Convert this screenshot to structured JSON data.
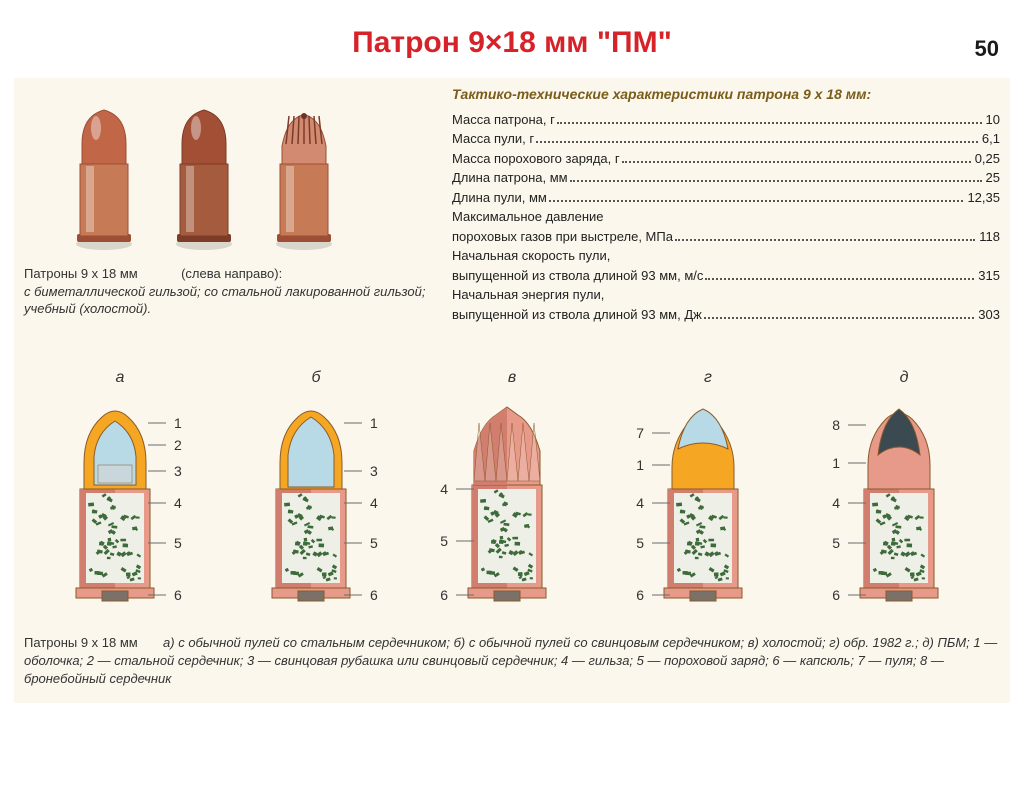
{
  "page_number": "50",
  "title": "Патрон 9×18 мм \"ПМ\"",
  "background_color": "#fbf7ec",
  "title_color": "#d6232a",
  "photo": {
    "label": "Патроны 9 х 18 мм",
    "paren": "(слева направо):",
    "desc_italic": "с биметаллической гильзой; со стальной лакированной гильзой; учебный (холостой).",
    "bullets": [
      {
        "body": "#c77a56",
        "rim": "#9c4f34",
        "tip_style": "round",
        "tip_color": "#c26648"
      },
      {
        "body": "#a45b3e",
        "rim": "#7c3c28",
        "tip_style": "round",
        "tip_color": "#a24f35"
      },
      {
        "body": "#c77a56",
        "rim": "#9c4f34",
        "tip_style": "crimp",
        "tip_color": "#d28a70"
      }
    ]
  },
  "specs": {
    "title": "Тактико-технические характеристики патрона 9 х 18 мм:",
    "rows": [
      {
        "label": "Масса патрона, г",
        "value": "10"
      },
      {
        "label": "Масса пули, г",
        "value": "6,1"
      },
      {
        "label": "Масса порохового заряда, г",
        "value": "0,25"
      },
      {
        "label": "Длина патрона, мм",
        "value": "25"
      },
      {
        "label": "Длина пули, мм",
        "value": "12,35"
      },
      {
        "label": "Максимальное давление",
        "cont": "пороховых газов при выстреле, МПа",
        "value": "118"
      },
      {
        "label": "Начальная скорость пули,",
        "cont": "выпущенной из ствола длиной 93 мм, м/с",
        "value": "315"
      },
      {
        "label": "Начальная энергия пули,",
        "cont": "выпущенной из ствола длиной 93 мм, Дж",
        "value": "303"
      }
    ]
  },
  "diagrams": {
    "labels": [
      "а",
      "б",
      "в",
      "г",
      "д"
    ],
    "colors": {
      "jacket": "#f5a623",
      "steel_core": "#b7dae6",
      "lead": "#c9d6db",
      "case_body": "#e89a8a",
      "case_shadow": "#d17e6f",
      "powder_bg": "#eef0e8",
      "powder_grain": "#3e6b3a",
      "primer": "#7a7268",
      "ap_core": "#3a4a50",
      "outline": "#8a5a2a",
      "callout": "#6b6b6b"
    },
    "items": [
      {
        "id": "a",
        "type": "standard_steel",
        "callouts": [
          1,
          2,
          3,
          4,
          5,
          6
        ]
      },
      {
        "id": "b",
        "type": "standard_lead",
        "callouts": [
          1,
          3,
          4,
          5,
          6
        ]
      },
      {
        "id": "c",
        "type": "blank",
        "callouts": [
          4,
          5,
          6
        ]
      },
      {
        "id": "d",
        "type": "m1982",
        "callouts": [
          1,
          7,
          4,
          5,
          6
        ]
      },
      {
        "id": "e",
        "type": "pbm",
        "callouts": [
          8,
          1,
          4,
          5,
          6
        ]
      }
    ]
  },
  "bottom_caption": {
    "lead": "Патроны 9 х 18 мм",
    "body_italic": "а) с обычной пулей со стальным сердечником; б) с обычной пулей со свинцовым сердечником; в) холостой; г) обр. 1982 г.; д) ПБМ; 1 — оболочка; 2 — стальной сердечник; 3 — свинцовая рубашка или свинцовый сердечник; 4 — гильза; 5 — пороховой заряд; 6 — капсюль; 7 — пуля; 8 — бронебойный сердечник"
  }
}
